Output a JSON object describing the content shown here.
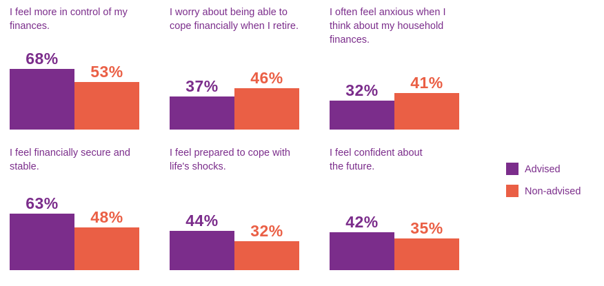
{
  "colors": {
    "advised": "#7b2d8b",
    "non_advised": "#ea5f45"
  },
  "legend": [
    {
      "label": "Advised",
      "color": "#7b2d8b"
    },
    {
      "label": "Non-advised",
      "color": "#ea5f45"
    }
  ],
  "chart_data": [
    {
      "type": "bar",
      "title": "I feel more in control of my finances.",
      "categories": [
        "Advised",
        "Non-advised"
      ],
      "values": [
        68,
        53
      ],
      "labels": [
        "68%",
        "53%"
      ],
      "ylim": [
        0,
        100
      ]
    },
    {
      "type": "bar",
      "title": "I worry about being able to cope financially when I retire.",
      "categories": [
        "Advised",
        "Non-advised"
      ],
      "values": [
        37,
        46
      ],
      "labels": [
        "37%",
        "46%"
      ],
      "ylim": [
        0,
        100
      ]
    },
    {
      "type": "bar",
      "title": "I often feel anxious when I think about my household finances.",
      "categories": [
        "Advised",
        "Non-advised"
      ],
      "values": [
        32,
        41
      ],
      "labels": [
        "32%",
        "41%"
      ],
      "ylim": [
        0,
        100
      ]
    },
    {
      "type": "bar",
      "title": "I feel financially secure and stable.",
      "categories": [
        "Advised",
        "Non-advised"
      ],
      "values": [
        63,
        48
      ],
      "labels": [
        "63%",
        "48%"
      ],
      "ylim": [
        0,
        100
      ]
    },
    {
      "type": "bar",
      "title": "I feel prepared to cope with life's shocks.",
      "categories": [
        "Advised",
        "Non-advised"
      ],
      "values": [
        44,
        32
      ],
      "labels": [
        "44%",
        "32%"
      ],
      "ylim": [
        0,
        100
      ]
    },
    {
      "type": "bar",
      "title": "I feel confident about the future.",
      "categories": [
        "Advised",
        "Non-advised"
      ],
      "values": [
        42,
        35
      ],
      "labels": [
        "42%",
        "35%"
      ],
      "ylim": [
        0,
        100
      ]
    }
  ]
}
